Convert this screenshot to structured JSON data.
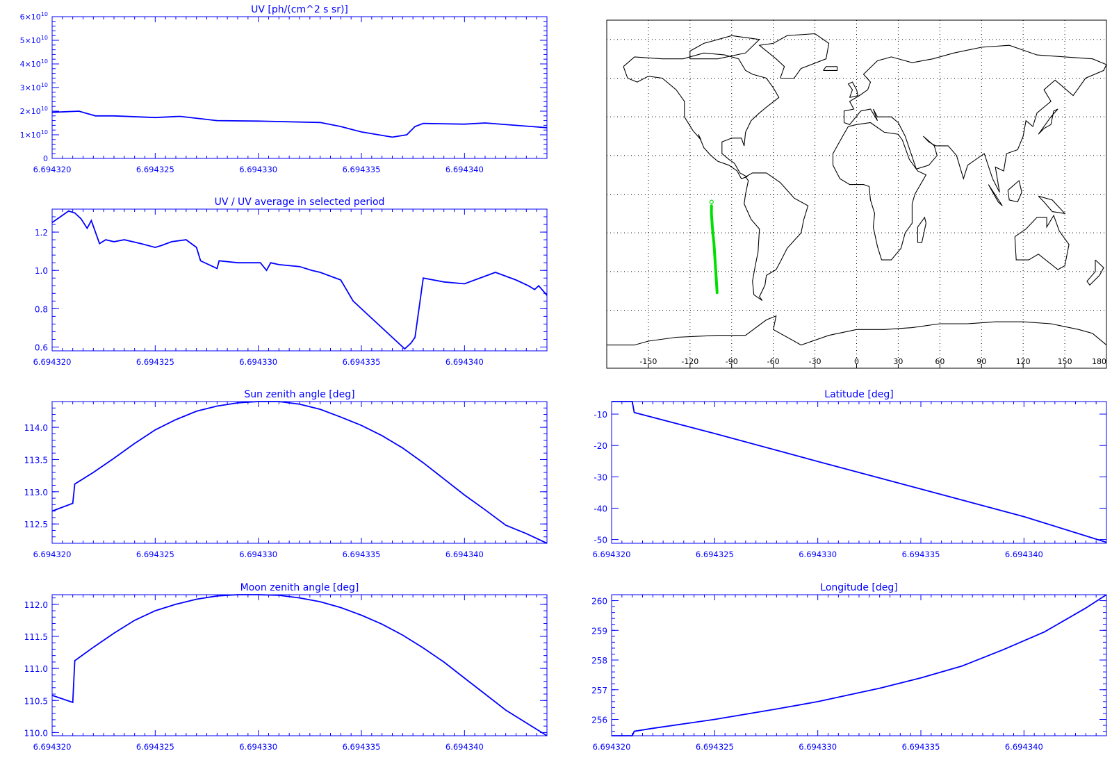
{
  "colors": {
    "axis": "#0000ff",
    "line": "#0000ff",
    "track": "#00e000",
    "map": "#000000"
  },
  "chart_data": [
    {
      "id": "uv",
      "type": "line",
      "title": "UV [ph/(cm^2 s sr)]",
      "xlabel": "",
      "ylabel": "",
      "xlim": [
        6.69432,
        6.694344
      ],
      "ylim": [
        0,
        60000000000.0
      ],
      "x_ticks": [
        "6.694320",
        "6.694325",
        "6.694330",
        "6.694335",
        "6.694340"
      ],
      "y_ticks": [
        {
          "value": 0,
          "mantissa": "0",
          "exp": ""
        },
        {
          "value": 10000000000.0,
          "mantissa": "1×10",
          "exp": "10"
        },
        {
          "value": 20000000000.0,
          "mantissa": "2×10",
          "exp": "10"
        },
        {
          "value": 30000000000.0,
          "mantissa": "3×10",
          "exp": "10"
        },
        {
          "value": 40000000000.0,
          "mantissa": "4×10",
          "exp": "10"
        },
        {
          "value": 50000000000.0,
          "mantissa": "5×10",
          "exp": "10"
        },
        {
          "value": 60000000000.0,
          "mantissa": "6×10",
          "exp": "10"
        }
      ],
      "series": [
        {
          "x": [
            6.69432,
            6.6943213,
            6.6943221,
            6.694323,
            6.694325,
            6.6943262,
            6.6943272,
            6.694328,
            6.69433,
            6.694333,
            6.694334,
            6.694335,
            6.6943365,
            6.6943372,
            6.6943376,
            6.694338,
            6.69434,
            6.694341,
            6.694344
          ],
          "y": [
            19500000000.0,
            20000000000.0,
            18000000000.0,
            18000000000.0,
            17300000000.0,
            17800000000.0,
            16800000000.0,
            16000000000.0,
            15800000000.0,
            15200000000.0,
            13500000000.0,
            11200000000.0,
            9000000000.0,
            10000000000.0,
            13500000000.0,
            14800000000.0,
            14500000000.0,
            15000000000.0,
            13000000000.0
          ]
        }
      ]
    },
    {
      "id": "uvratio",
      "type": "line",
      "title": "UV / UV average in selected period",
      "xlabel": "",
      "ylabel": "",
      "xlim": [
        6.69432,
        6.694344
      ],
      "ylim": [
        0.58,
        1.32
      ],
      "x_ticks": [
        "6.694320",
        "6.694325",
        "6.694330",
        "6.694335",
        "6.694340"
      ],
      "y_ticks": [
        {
          "value": 0.6,
          "label": "0.6"
        },
        {
          "value": 0.8,
          "label": "0.8"
        },
        {
          "value": 1.0,
          "label": "1.0"
        },
        {
          "value": 1.2,
          "label": "1.2"
        }
      ],
      "series": [
        {
          "x": [
            6.69432,
            6.6943204,
            6.6943208,
            6.6943211,
            6.6943214,
            6.6943217,
            6.6943219,
            6.6943221,
            6.6943223,
            6.6943226,
            6.694323,
            6.6943235,
            6.6943243,
            6.694325,
            6.6943253,
            6.6943258,
            6.6943265,
            6.694327,
            6.6943272,
            6.6943276,
            6.694328,
            6.6943281,
            6.694329,
            6.6943301,
            6.6943304,
            6.6943306,
            6.694331,
            6.694332,
            6.6943326,
            6.694333,
            6.694334,
            6.6943346,
            6.6943352,
            6.6943362,
            6.6943371,
            6.6943374,
            6.6943376,
            6.694338,
            6.694339,
            6.69434,
            6.694341,
            6.6943415,
            6.6943425,
            6.6943431,
            6.6943434,
            6.6943436,
            6.694344
          ],
          "y": [
            1.25,
            1.28,
            1.31,
            1.3,
            1.27,
            1.22,
            1.26,
            1.2,
            1.14,
            1.16,
            1.15,
            1.16,
            1.14,
            1.12,
            1.13,
            1.15,
            1.16,
            1.12,
            1.05,
            1.03,
            1.01,
            1.05,
            1.04,
            1.04,
            1.0,
            1.04,
            1.03,
            1.02,
            1.0,
            0.99,
            0.95,
            0.84,
            0.78,
            0.68,
            0.59,
            0.62,
            0.65,
            0.96,
            0.94,
            0.93,
            0.97,
            0.99,
            0.95,
            0.92,
            0.9,
            0.92,
            0.87
          ]
        }
      ]
    },
    {
      "id": "sza",
      "type": "line",
      "title": "Sun zenith angle [deg]",
      "xlabel": "",
      "ylabel": "",
      "xlim": [
        6.69432,
        6.694344
      ],
      "ylim": [
        112.2,
        114.4
      ],
      "x_ticks": [
        "6.694320",
        "6.694325",
        "6.694330",
        "6.694335",
        "6.694340"
      ],
      "y_ticks": [
        {
          "value": 112.5,
          "label": "112.5"
        },
        {
          "value": 113.0,
          "label": "113.0"
        },
        {
          "value": 113.5,
          "label": "113.5"
        },
        {
          "value": 114.0,
          "label": "114.0"
        }
      ],
      "series": [
        {
          "x": [
            6.69432,
            6.694321,
            6.6943211,
            6.694322,
            6.694323,
            6.694324,
            6.694325,
            6.694326,
            6.694327,
            6.694328,
            6.694329,
            6.69433,
            6.694331,
            6.694332,
            6.694333,
            6.694334,
            6.694335,
            6.694336,
            6.694337,
            6.694338,
            6.694339,
            6.69434,
            6.694341,
            6.694342,
            6.694343,
            6.694344
          ],
          "y": [
            112.7,
            112.82,
            113.12,
            113.3,
            113.52,
            113.75,
            113.96,
            114.12,
            114.25,
            114.33,
            114.38,
            114.4,
            114.4,
            114.36,
            114.28,
            114.16,
            114.03,
            113.87,
            113.68,
            113.45,
            113.2,
            112.95,
            112.72,
            112.48,
            112.35,
            112.2
          ]
        }
      ]
    },
    {
      "id": "mza",
      "type": "line",
      "title": "Moon zenith angle [deg]",
      "xlabel": "",
      "ylabel": "",
      "xlim": [
        6.69432,
        6.694344
      ],
      "ylim": [
        109.95,
        112.15
      ],
      "x_ticks": [
        "6.694320",
        "6.694325",
        "6.694330",
        "6.694335",
        "6.694340"
      ],
      "y_ticks": [
        {
          "value": 110.0,
          "label": "110.0"
        },
        {
          "value": 110.5,
          "label": "110.5"
        },
        {
          "value": 111.0,
          "label": "111.0"
        },
        {
          "value": 111.5,
          "label": "111.5"
        },
        {
          "value": 112.0,
          "label": "112.0"
        }
      ],
      "series": [
        {
          "x": [
            6.69432,
            6.694321,
            6.6943211,
            6.694322,
            6.694323,
            6.694324,
            6.694325,
            6.694326,
            6.694327,
            6.694328,
            6.694329,
            6.69433,
            6.694331,
            6.694332,
            6.694333,
            6.694334,
            6.694335,
            6.694336,
            6.694337,
            6.694338,
            6.694339,
            6.69434,
            6.694341,
            6.694342,
            6.694343,
            6.694344
          ],
          "y": [
            110.58,
            110.47,
            111.12,
            111.33,
            111.55,
            111.75,
            111.9,
            112.0,
            112.08,
            112.13,
            112.15,
            112.15,
            112.14,
            112.1,
            112.04,
            111.95,
            111.83,
            111.69,
            111.52,
            111.32,
            111.1,
            110.85,
            110.6,
            110.35,
            110.15,
            109.95
          ]
        }
      ]
    },
    {
      "id": "lat",
      "type": "line",
      "title": "Latitude [deg]",
      "xlabel": "",
      "ylabel": "",
      "xlim": [
        6.69432,
        6.694344
      ],
      "ylim": [
        -51.2,
        -6
      ],
      "x_ticks": [
        "6.694320",
        "6.694325",
        "6.694330",
        "6.694335",
        "6.694340"
      ],
      "y_ticks": [
        {
          "value": -10,
          "label": "-10"
        },
        {
          "value": -20,
          "label": "-20"
        },
        {
          "value": -30,
          "label": "-30"
        },
        {
          "value": -40,
          "label": "-40"
        },
        {
          "value": -50,
          "label": "-50"
        }
      ],
      "series": [
        {
          "x": [
            6.69432,
            6.694321,
            6.6943211,
            6.694325,
            6.69433,
            6.694335,
            6.69434,
            6.694344
          ],
          "y": [
            -6,
            -6,
            -9.5,
            -16.2,
            -25.1,
            -33.9,
            -42.7,
            -50.9
          ]
        }
      ]
    },
    {
      "id": "lon",
      "type": "line",
      "title": "Longitude [deg]",
      "xlabel": "",
      "ylabel": "",
      "xlim": [
        6.69432,
        6.694344
      ],
      "ylim": [
        255.45,
        260.2
      ],
      "x_ticks": [
        "6.694320",
        "6.694325",
        "6.694330",
        "6.694335",
        "6.694340"
      ],
      "y_ticks": [
        {
          "value": 256,
          "label": "256"
        },
        {
          "value": 257,
          "label": "257"
        },
        {
          "value": 258,
          "label": "258"
        },
        {
          "value": 259,
          "label": "259"
        },
        {
          "value": 260,
          "label": "260"
        }
      ],
      "series": [
        {
          "x": [
            6.69432,
            6.694321,
            6.6943211,
            6.694322,
            6.694325,
            6.694328,
            6.69433,
            6.694333,
            6.694335,
            6.694337,
            6.694339,
            6.694341,
            6.694342,
            6.694343,
            6.694344
          ],
          "y": [
            255.45,
            255.45,
            255.6,
            255.7,
            256.0,
            256.35,
            256.6,
            257.05,
            257.4,
            257.8,
            258.35,
            258.95,
            259.35,
            259.75,
            260.2
          ]
        }
      ]
    },
    {
      "id": "map",
      "type": "scatter",
      "title": "",
      "xlabel": "",
      "ylabel": "",
      "xlim": [
        -180,
        180
      ],
      "ylim": [
        -90,
        90
      ],
      "x_ticks": [
        "-150",
        "-120",
        "-90",
        "-60",
        "-30",
        "0",
        "30",
        "60",
        "90",
        "120",
        "150",
        "180"
      ],
      "track": {
        "lon": [
          -104.5,
          -104.6,
          -104.0,
          -103.5,
          -102.8,
          -102.0,
          -101.2,
          -100.5
        ],
        "lat": [
          -6,
          -9.5,
          -16.2,
          -20.5,
          -25.1,
          -33.9,
          -42.7,
          -50.9
        ]
      },
      "start_marker": {
        "lon": -104.5,
        "lat": -4
      }
    }
  ]
}
